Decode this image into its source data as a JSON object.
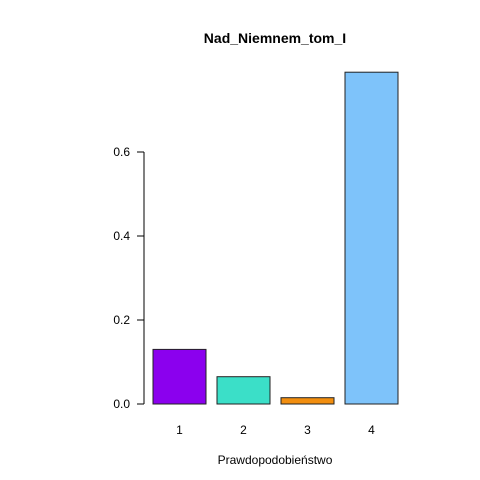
{
  "chart_data": {
    "type": "bar",
    "title": "Nad_Niemnem_tom_I",
    "xlabel": "Prawdopodobieństwo",
    "ylabel": "",
    "categories": [
      "1",
      "2",
      "3",
      "4"
    ],
    "values": [
      0.13,
      0.065,
      0.015,
      0.79
    ],
    "colors": [
      "#8B00EE",
      "#3BDFC8",
      "#F28E0F",
      "#7EC3FA"
    ],
    "ylim": [
      0,
      0.8
    ],
    "yticks": [
      0.0,
      0.2,
      0.4,
      0.6
    ],
    "ytick_labels": [
      "0.0",
      "0.2",
      "0.4",
      "0.6"
    ],
    "grid": false,
    "legend": "none"
  }
}
